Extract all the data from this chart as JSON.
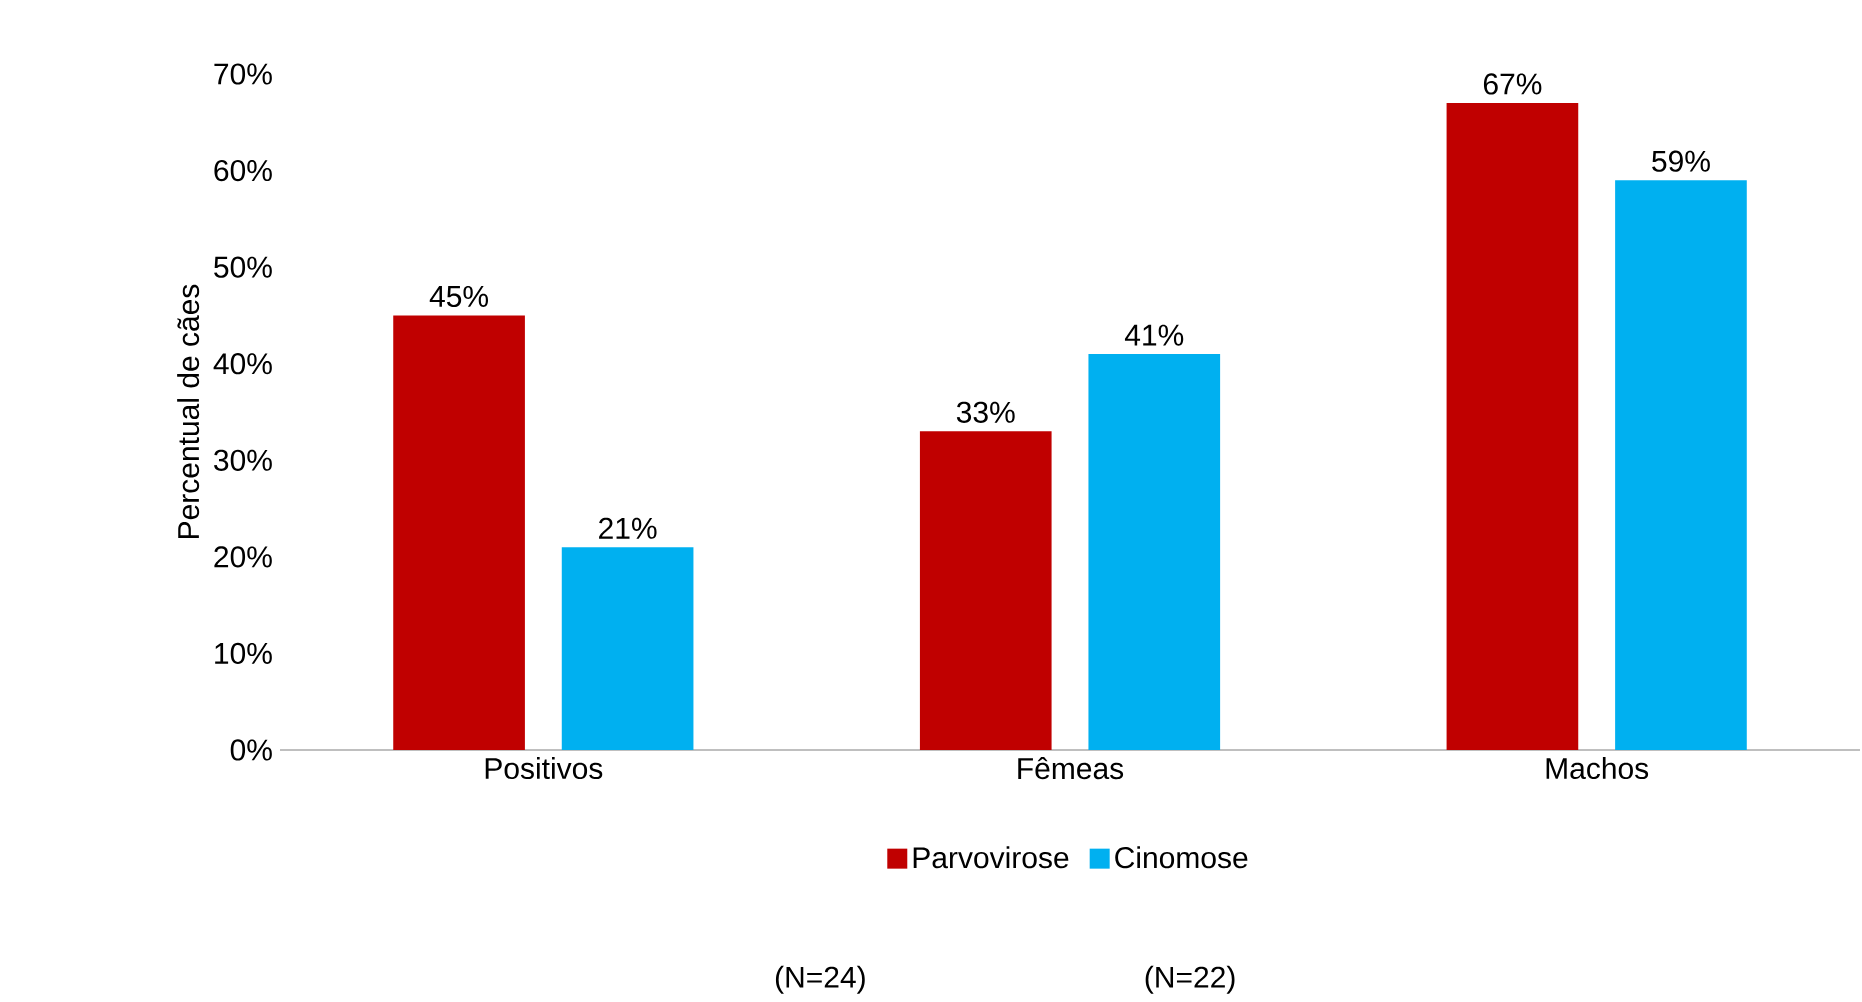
{
  "chart_data": {
    "type": "bar",
    "ylabel": "Percentual de cães",
    "categories": [
      "Positivos",
      "Fêmeas",
      "Machos"
    ],
    "series": [
      {
        "name": "Parvovirose",
        "color": "#c00000",
        "values": [
          45,
          33,
          67
        ],
        "value_labels": [
          "45%",
          "33%",
          "67%"
        ]
      },
      {
        "name": "Cinomose",
        "color": "#00b0f0",
        "values": [
          21,
          41,
          59
        ],
        "value_labels": [
          "21%",
          "41%",
          "59%"
        ]
      }
    ],
    "ylim": [
      0,
      70
    ],
    "yticks": [
      {
        "value": 0,
        "label": "0%"
      },
      {
        "value": 10,
        "label": "10%"
      },
      {
        "value": 20,
        "label": "20%"
      },
      {
        "value": 30,
        "label": "30%"
      },
      {
        "value": 40,
        "label": "40%"
      },
      {
        "value": 50,
        "label": "50%"
      },
      {
        "value": 60,
        "label": "60%"
      },
      {
        "value": 70,
        "label": "70%"
      }
    ],
    "legend": "bottom",
    "annotations": [
      "(N=24)",
      "(N=22)"
    ]
  }
}
